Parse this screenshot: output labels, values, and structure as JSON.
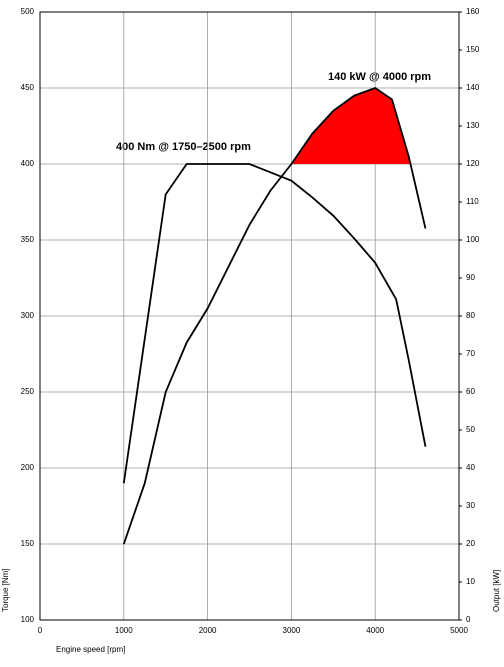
{
  "chart_data": {
    "type": "line",
    "xlabel": "Engine speed [rpm]",
    "ylabel": "Torque [Nm]",
    "y2label": "Output [kW]",
    "xlim": [
      0,
      5000
    ],
    "xticks": [
      0,
      1000,
      2000,
      3000,
      4000,
      5000
    ],
    "ylim": [
      100,
      500
    ],
    "yticks": [
      100,
      150,
      200,
      250,
      300,
      350,
      400,
      450,
      500
    ],
    "y2lim": [
      0,
      160
    ],
    "y2ticks": [
      0,
      10,
      20,
      30,
      40,
      50,
      60,
      70,
      80,
      90,
      100,
      110,
      120,
      130,
      140,
      150,
      160
    ],
    "grid": true,
    "highlight_color": "#ff0000",
    "series": [
      {
        "color": "#000000",
        "x": [
          1000,
          1500,
          1750,
          2500,
          3000,
          3250,
          3500,
          3750,
          4000,
          4250,
          4400,
          4600
        ],
        "values": [
          190,
          380,
          400,
          400,
          389,
          378,
          366,
          351,
          335,
          311,
          271,
          214
        ]
      },
      {
        "color": "#000000",
        "axis": "y2",
        "x": [
          1000,
          1250,
          1500,
          1750,
          2000,
          2500,
          2750,
          3000,
          3250,
          3500,
          3750,
          4000,
          4200,
          4400,
          4600
        ],
        "values": [
          20,
          36,
          60,
          73,
          82,
          104,
          113,
          120,
          128,
          134,
          138,
          140,
          137,
          122,
          103
        ]
      }
    ],
    "annotations": [
      "400 Nm @ 1750–2500 rpm",
      "140 kW @ 4000 rpm"
    ]
  }
}
